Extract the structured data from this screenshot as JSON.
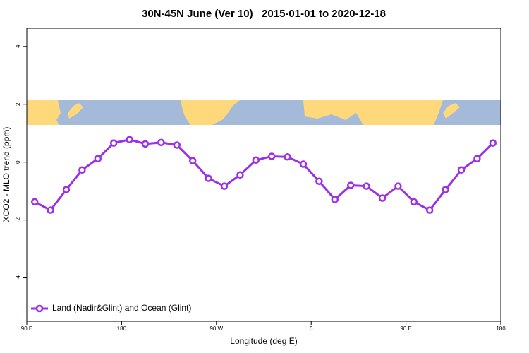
{
  "chart_data": {
    "type": "line",
    "title": "30N-45N June (Ver 10)   2015-01-01 to 2020-12-18",
    "xlabel": "Longitude (deg E)",
    "ylabel": "XCO2 - MLO trend (ppm)",
    "x": [
      97.5,
      112.5,
      127.5,
      142.5,
      157.5,
      172.5,
      187.5,
      202.5,
      217.5,
      232.5,
      247.5,
      262.5,
      277.5,
      292.5,
      307.5,
      322.5,
      337.5,
      352.5,
      367.5,
      382.5,
      397.5,
      412.5,
      427.5,
      442.5,
      457.5,
      472.5,
      487.5,
      502.5,
      517.5,
      532.5
    ],
    "series": [
      {
        "name": "Land (Nadir&Glint) and Ocean (Glint)",
        "color": "#9b30e6",
        "values": [
          -1.37,
          -1.66,
          -0.95,
          -0.27,
          0.12,
          0.66,
          0.78,
          0.63,
          0.68,
          0.59,
          0.05,
          -0.56,
          -0.83,
          -0.44,
          0.07,
          0.2,
          0.18,
          -0.07,
          -0.66,
          -1.29,
          -0.8,
          -0.83,
          -1.24,
          -0.83,
          -1.37,
          -1.66,
          -0.95,
          -0.27,
          0.12,
          0.66
        ]
      }
    ],
    "xlim": [
      90,
      540
    ],
    "xticks": [
      {
        "value": 90,
        "label": "90 E"
      },
      180,
      {
        "value": 270,
        "label": "90 W"
      },
      {
        "value": 360,
        "label": "0"
      },
      {
        "value": 450,
        "label": "90 E"
      },
      {
        "value": 540,
        "label": "180"
      }
    ],
    "ylim": [
      -5.5,
      4.63
    ],
    "yticks": [
      -4,
      -2,
      0,
      2,
      4
    ],
    "legend": "bottom-left",
    "grid": false
  }
}
